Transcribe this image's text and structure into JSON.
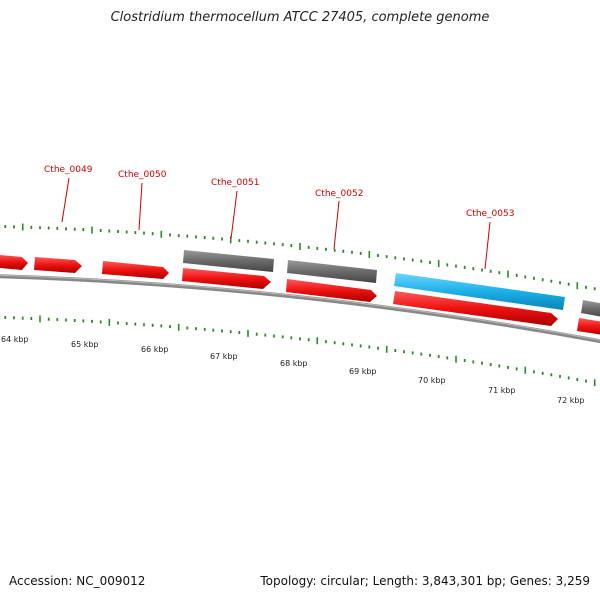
{
  "title": "Clostridium thermocellum ATCC 27405, complete genome",
  "footer": {
    "accession": "Accession: NC_009012",
    "summary": "Topology: circular; Length: 3,843,301 bp; Genes: 3,259"
  },
  "colors": {
    "forward_gene": "#ee1111",
    "reverse_gene": "#666666",
    "highlight_gene": "#1ab0e8",
    "backbone": "#777777",
    "ticks": "#2a8a2a",
    "label": "#cc0000"
  },
  "chart_data": {
    "type": "genome_map",
    "kbp_ticks": [
      "64 kbp",
      "65 kbp",
      "66 kbp",
      "67 kbp",
      "68 kbp",
      "69 kbp",
      "70 kbp",
      "71 kbp",
      "72 kbp"
    ],
    "gene_labels": [
      "Cthe_0049",
      "Cthe_0050",
      "Cthe_0051",
      "Cthe_0052",
      "Cthe_0053"
    ]
  }
}
